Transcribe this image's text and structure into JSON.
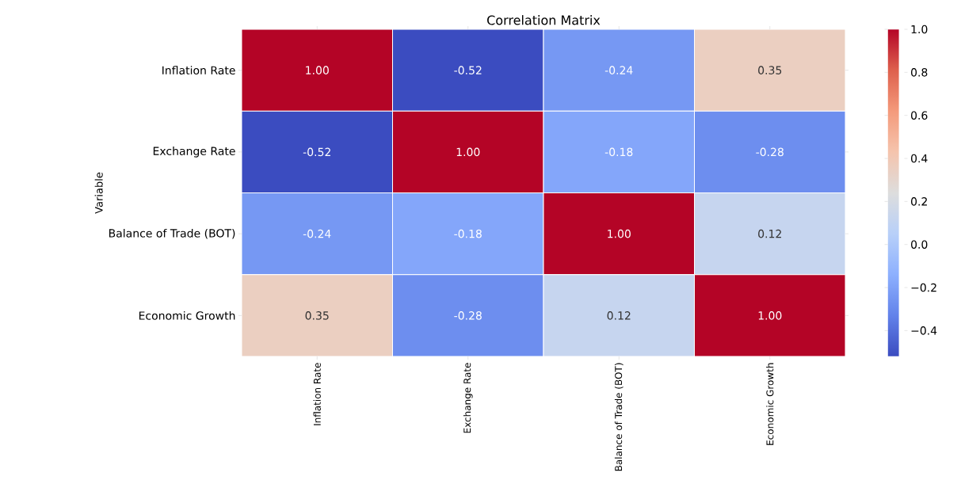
{
  "chart_data": {
    "type": "heatmap",
    "title": "Correlation Matrix",
    "ylabel": "Variable",
    "categories": [
      "Inflation Rate",
      "Exchange Rate",
      "Balance of Trade (BOT)",
      "Economic Growth"
    ],
    "y_categories": [
      "Inflation Rate",
      "Exchange Rate",
      "Balance of Trade (BOT)",
      "Economic Growth"
    ],
    "cells": [
      [
        1.0,
        -0.52,
        -0.24,
        0.35
      ],
      [
        -0.52,
        1.0,
        -0.18,
        -0.28
      ],
      [
        -0.24,
        -0.18,
        1.0,
        0.12
      ],
      [
        0.35,
        -0.28,
        0.12,
        1.0
      ]
    ],
    "cell_labels": [
      [
        "1.00",
        "-0.52",
        "-0.24",
        "0.35"
      ],
      [
        "-0.52",
        "1.00",
        "-0.18",
        "-0.28"
      ],
      [
        "-0.24",
        "-0.18",
        "1.00",
        "0.12"
      ],
      [
        "0.35",
        "-0.28",
        "0.12",
        "1.00"
      ]
    ],
    "clim": [
      -0.52,
      1.0
    ],
    "cticks": [
      {
        "value": -0.4,
        "label": "−0.4"
      },
      {
        "value": -0.2,
        "label": "−0.2"
      },
      {
        "value": 0.0,
        "label": "0.0"
      },
      {
        "value": 0.2,
        "label": "0.2"
      },
      {
        "value": 0.4,
        "label": "0.4"
      },
      {
        "value": 0.6,
        "label": "0.6"
      },
      {
        "value": 0.8,
        "label": "0.8"
      },
      {
        "value": 1.0,
        "label": "1.0"
      }
    ]
  }
}
